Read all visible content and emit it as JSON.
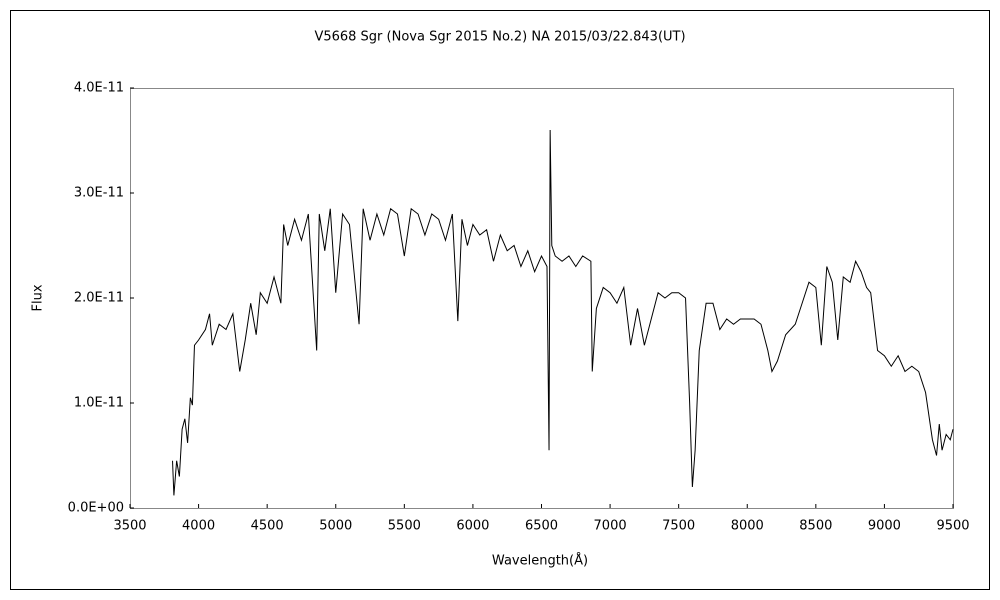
{
  "chart_data": {
    "type": "line",
    "title": "V5668 Sgr (Nova Sgr 2015 No.2)     NA     2015/03/22.843(UT)",
    "xlabel": "Wavelength(Å)",
    "ylabel": "Flux",
    "color": "#000000",
    "xlim": [
      3500,
      9500
    ],
    "xticks": [
      3500,
      4000,
      4500,
      5000,
      5500,
      6000,
      6500,
      7000,
      7500,
      8000,
      8500,
      9000,
      9500
    ],
    "ylim": [
      0,
      4e-11
    ],
    "yticks": [
      {
        "value": 0,
        "label": "0.0E+00"
      },
      {
        "value": 1e-11,
        "label": "1.0E-11"
      },
      {
        "value": 2e-11,
        "label": "2.0E-11"
      },
      {
        "value": 3e-11,
        "label": "3.0E-11"
      },
      {
        "value": 4e-11,
        "label": "4.0E-11"
      }
    ],
    "x": [
      3810,
      3820,
      3840,
      3860,
      3880,
      3900,
      3920,
      3940,
      3955,
      3970,
      4000,
      4050,
      4080,
      4100,
      4150,
      4200,
      4250,
      4300,
      4340,
      4380,
      4420,
      4450,
      4500,
      4550,
      4600,
      4620,
      4650,
      4700,
      4750,
      4800,
      4861,
      4880,
      4920,
      4960,
      5000,
      5050,
      5100,
      5170,
      5200,
      5250,
      5300,
      5350,
      5400,
      5450,
      5500,
      5550,
      5600,
      5650,
      5700,
      5750,
      5800,
      5850,
      5890,
      5920,
      5960,
      6000,
      6050,
      6100,
      6150,
      6200,
      6250,
      6300,
      6350,
      6400,
      6450,
      6500,
      6540,
      6555,
      6563,
      6575,
      6600,
      6650,
      6700,
      6750,
      6800,
      6860,
      6870,
      6900,
      6950,
      7000,
      7050,
      7100,
      7150,
      7200,
      7250,
      7300,
      7350,
      7400,
      7450,
      7500,
      7550,
      7580,
      7600,
      7620,
      7650,
      7700,
      7750,
      7800,
      7850,
      7900,
      7950,
      8000,
      8050,
      8100,
      8150,
      8180,
      8220,
      8280,
      8350,
      8400,
      8450,
      8500,
      8540,
      8580,
      8620,
      8660,
      8700,
      8750,
      8790,
      8830,
      8870,
      8900,
      8950,
      9000,
      9050,
      9100,
      9150,
      9200,
      9250,
      9300,
      9350,
      9380,
      9400,
      9420,
      9450,
      9480,
      9500
    ],
    "values": [
      4.5e-12,
      1.2e-12,
      4.5e-12,
      3e-12,
      7.5e-12,
      8.5e-12,
      6.2e-12,
      1.05e-11,
      9.8e-12,
      1.55e-11,
      1.6e-11,
      1.7e-11,
      1.85e-11,
      1.55e-11,
      1.75e-11,
      1.7e-11,
      1.85e-11,
      1.3e-11,
      1.6e-11,
      1.95e-11,
      1.65e-11,
      2.05e-11,
      1.95e-11,
      2.2e-11,
      1.95e-11,
      2.7e-11,
      2.5e-11,
      2.75e-11,
      2.55e-11,
      2.8e-11,
      1.5e-11,
      2.8e-11,
      2.45e-11,
      2.85e-11,
      2.05e-11,
      2.8e-11,
      2.7e-11,
      1.75e-11,
      2.85e-11,
      2.55e-11,
      2.8e-11,
      2.6e-11,
      2.85e-11,
      2.8e-11,
      2.4e-11,
      2.85e-11,
      2.8e-11,
      2.6e-11,
      2.8e-11,
      2.75e-11,
      2.55e-11,
      2.8e-11,
      1.78e-11,
      2.75e-11,
      2.5e-11,
      2.7e-11,
      2.6e-11,
      2.65e-11,
      2.35e-11,
      2.6e-11,
      2.45e-11,
      2.5e-11,
      2.3e-11,
      2.45e-11,
      2.25e-11,
      2.4e-11,
      2.3e-11,
      5.5e-12,
      3.6e-11,
      2.5e-11,
      2.4e-11,
      2.35e-11,
      2.4e-11,
      2.3e-11,
      2.4e-11,
      2.35e-11,
      1.3e-11,
      1.9e-11,
      2.1e-11,
      2.05e-11,
      1.95e-11,
      2.1e-11,
      1.55e-11,
      1.9e-11,
      1.55e-11,
      1.8e-11,
      2.05e-11,
      2e-11,
      2.05e-11,
      2.05e-11,
      2e-11,
      1e-11,
      2e-12,
      5.5e-12,
      1.5e-11,
      1.95e-11,
      1.95e-11,
      1.7e-11,
      1.8e-11,
      1.75e-11,
      1.8e-11,
      1.8e-11,
      1.8e-11,
      1.75e-11,
      1.5e-11,
      1.3e-11,
      1.4e-11,
      1.65e-11,
      1.75e-11,
      1.95e-11,
      2.15e-11,
      2.1e-11,
      1.55e-11,
      2.3e-11,
      2.15e-11,
      1.6e-11,
      2.2e-11,
      2.15e-11,
      2.35e-11,
      2.25e-11,
      2.1e-11,
      2.05e-11,
      1.5e-11,
      1.45e-11,
      1.35e-11,
      1.45e-11,
      1.3e-11,
      1.35e-11,
      1.3e-11,
      1.1e-11,
      6.5e-12,
      5e-12,
      8e-12,
      5.5e-12,
      7e-12,
      6.5e-12,
      7.5e-12
    ]
  }
}
